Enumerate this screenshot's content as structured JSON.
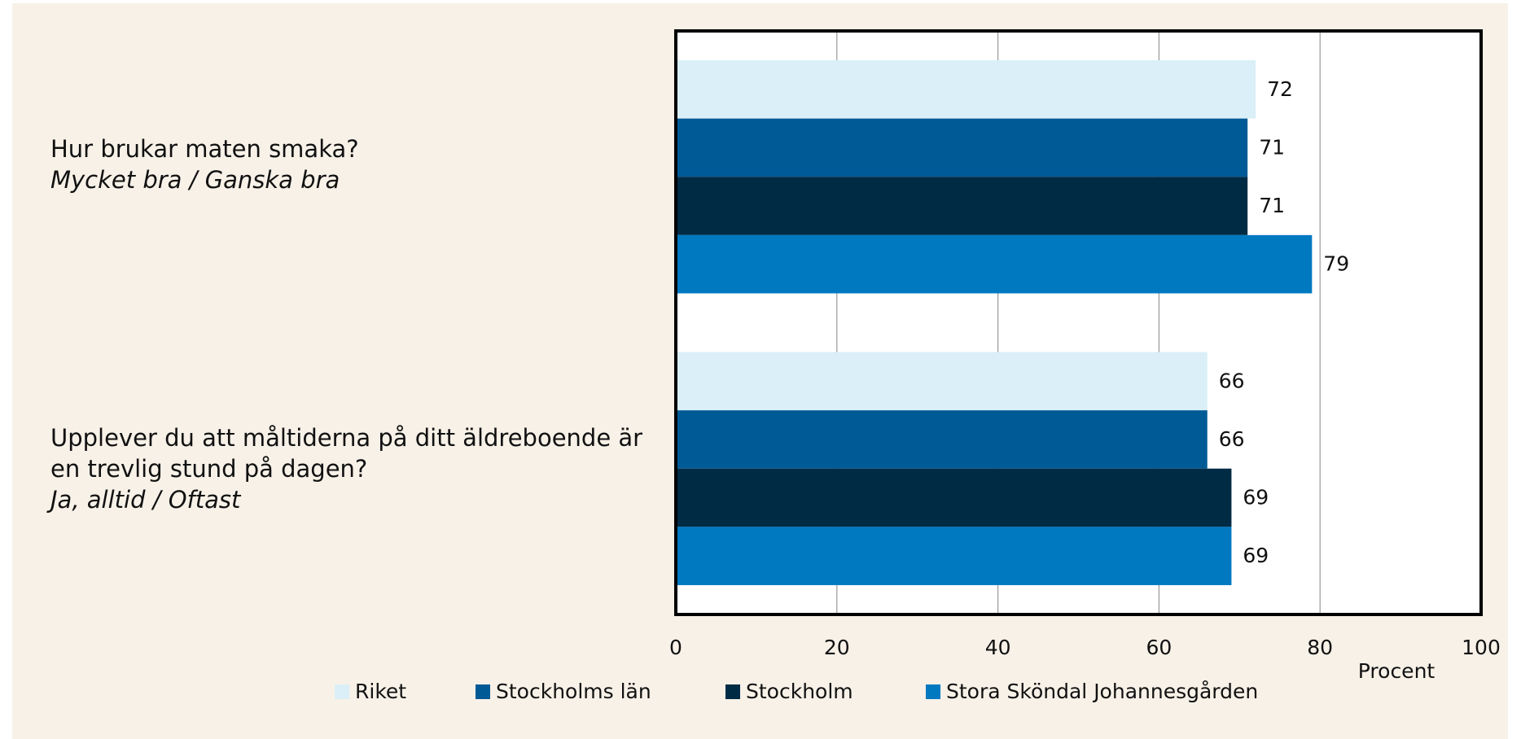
{
  "chart_data": {
    "type": "bar",
    "orientation": "horizontal",
    "categories": [
      "Hur brukar maten smaka?",
      "Upplever du att måltiderna på ditt äldreboende är en trevlig stund på dagen?"
    ],
    "category_subtitles": [
      "Mycket bra / Ganska bra",
      "Ja, alltid / Oftast"
    ],
    "series": [
      {
        "name": "Riket",
        "color": "#daeff7",
        "values": [
          72,
          66
        ]
      },
      {
        "name": "Stockholms län",
        "color": "#005a96",
        "values": [
          71,
          66
        ]
      },
      {
        "name": "Stockholm",
        "color": "#002b45",
        "values": [
          71,
          69
        ]
      },
      {
        "name": "Stora Sköndal Johannesgården",
        "color": "#0079c1",
        "values": [
          79,
          69
        ]
      }
    ],
    "x_label": "Procent",
    "xlim": [
      0,
      100
    ],
    "xticks": [
      0,
      20,
      40,
      60,
      80,
      100
    ],
    "grid": true,
    "legend": "bottom"
  }
}
